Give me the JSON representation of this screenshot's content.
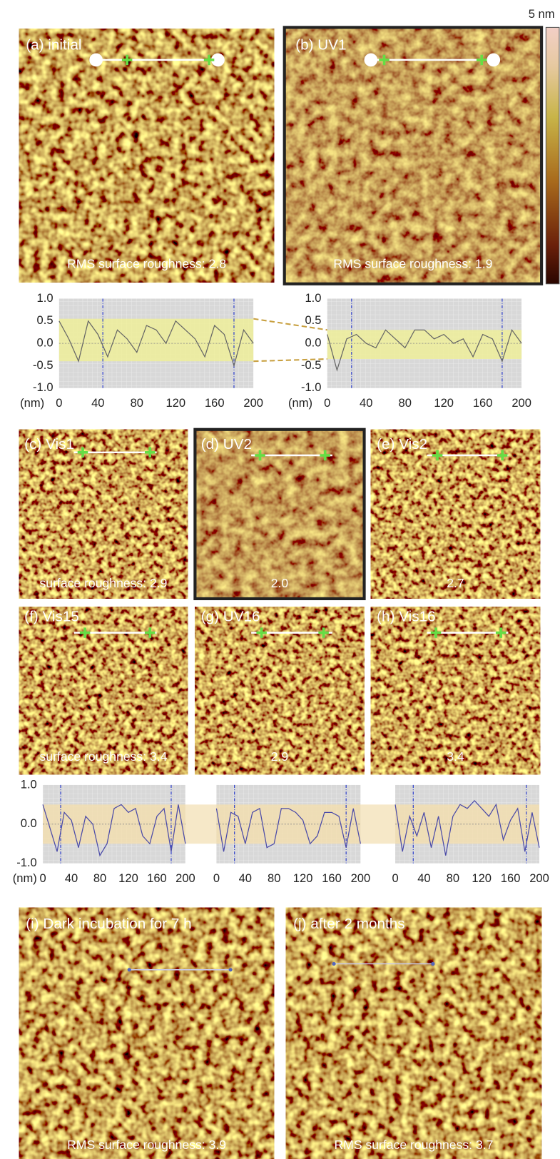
{
  "colorbar": {
    "label": "5 nm"
  },
  "panels": [
    {
      "label": "(a) initial",
      "roughness": "RMS surface roughness: 2.8"
    },
    {
      "label": "(b) UV1",
      "roughness": "RMS surface roughness: 1.9"
    },
    {
      "label": "(c) Vis1",
      "roughness": "surface roughness: 2.9"
    },
    {
      "label": "(d) UV2",
      "roughness": "2.0"
    },
    {
      "label": "(e) Vis2",
      "roughness": "2.7"
    },
    {
      "label": "(f) Vis15",
      "roughness": "surface roughness: 3.4"
    },
    {
      "label": "(g) UV16",
      "roughness": "2.9"
    },
    {
      "label": "(h) Vis16",
      "roughness": "3.4"
    },
    {
      "label": "(i) Dark incubation for 7 h",
      "roughness": "RMS surface roughness: 3.9"
    },
    {
      "label": "(j) after 2 months",
      "roughness": "RMS surface roughness: 3.7"
    }
  ],
  "chart_data": [
    {
      "type": "line",
      "x_label": "(nm)",
      "x": [
        0,
        10,
        20,
        30,
        40,
        50,
        60,
        70,
        80,
        90,
        100,
        110,
        120,
        130,
        140,
        150,
        160,
        170,
        180,
        190,
        200
      ],
      "series": [
        {
          "color": "#666666",
          "values": [
            0.5,
            0.1,
            -0.4,
            0.5,
            0.2,
            -0.3,
            0.3,
            0.1,
            -0.2,
            0.4,
            0.3,
            0.0,
            0.5,
            0.3,
            0.1,
            -0.3,
            0.4,
            0.2,
            -0.5,
            0.3,
            0.0
          ]
        }
      ],
      "xlim": [
        0,
        200
      ],
      "ylim": [
        -1,
        1
      ],
      "xticks": [
        0,
        40,
        80,
        120,
        160,
        200
      ],
      "yticks": [
        {
          "value": 1,
          "label": "1.0"
        },
        0.5,
        {
          "value": 0,
          "label": "0.0"
        },
        -0.5,
        {
          "value": -1,
          "label": "-1.0"
        }
      ],
      "band": [
        -0.4,
        0.55
      ],
      "band_color": "#eeee9a",
      "cursors": [
        45,
        180
      ],
      "cursor_color": "#3344cc",
      "grid": true
    },
    {
      "type": "line",
      "x_label": "(nm)",
      "x": [
        0,
        10,
        20,
        30,
        40,
        50,
        60,
        70,
        80,
        90,
        100,
        110,
        120,
        130,
        140,
        150,
        160,
        170,
        180,
        190,
        200
      ],
      "series": [
        {
          "color": "#666666",
          "values": [
            0.2,
            -0.6,
            0.1,
            0.2,
            0.0,
            -0.1,
            0.3,
            0.1,
            -0.1,
            0.3,
            0.3,
            0.1,
            0.2,
            0.0,
            0.1,
            -0.3,
            0.2,
            0.1,
            -0.4,
            0.3,
            0.0
          ]
        }
      ],
      "xlim": [
        0,
        200
      ],
      "ylim": [
        -1,
        1
      ],
      "xticks": [
        0,
        40,
        80,
        120,
        160,
        200
      ],
      "yticks": [
        {
          "value": 1,
          "label": "1.0"
        },
        0.5,
        {
          "value": 0,
          "label": "0.0"
        },
        -0.5,
        {
          "value": -1,
          "label": "-1.0"
        }
      ],
      "band": [
        -0.35,
        0.3
      ],
      "band_color": "#eeee9a",
      "cursors": [
        25,
        180
      ],
      "cursor_color": "#3344cc",
      "grid": true
    },
    {
      "type": "line",
      "x_label": "(nm)",
      "x": [
        0,
        10,
        20,
        30,
        40,
        50,
        60,
        70,
        80,
        90,
        100,
        110,
        120,
        130,
        140,
        150,
        160,
        170,
        180,
        190,
        200
      ],
      "series": [
        {
          "color": "#4a4aa8",
          "values": [
            0.5,
            -0.1,
            -0.7,
            0.3,
            0.1,
            -0.6,
            0.2,
            0.0,
            -0.8,
            -0.5,
            0.4,
            0.5,
            0.3,
            0.4,
            -0.3,
            -0.5,
            0.2,
            0.4,
            -0.7,
            0.5,
            -0.5
          ]
        }
      ],
      "xlim": [
        0,
        200
      ],
      "ylim": [
        -1,
        1
      ],
      "xticks": [
        0,
        40,
        80,
        120,
        160,
        200
      ],
      "yticks": [
        {
          "value": 1,
          "label": "1.0"
        },
        {
          "value": 0,
          "label": "0.0"
        },
        {
          "value": -1,
          "label": "-1.0"
        }
      ],
      "band": [
        -0.5,
        0.5
      ],
      "band_color": "#f2deb0",
      "cursors": [
        25,
        180
      ],
      "cursor_color": "#3344cc",
      "grid": true
    },
    {
      "type": "line",
      "x": [
        0,
        10,
        20,
        30,
        40,
        50,
        60,
        70,
        80,
        90,
        100,
        110,
        120,
        130,
        140,
        150,
        160,
        170,
        180,
        190,
        200
      ],
      "series": [
        {
          "color": "#4a4aa8",
          "values": [
            0.4,
            -0.7,
            0.3,
            0.2,
            -0.5,
            0.3,
            0.4,
            -0.6,
            -0.5,
            0.4,
            0.4,
            0.3,
            0.1,
            -0.5,
            -0.3,
            0.3,
            0.3,
            0.2,
            -0.6,
            0.4,
            -0.5
          ]
        }
      ],
      "xlim": [
        0,
        200
      ],
      "ylim": [
        -1,
        1
      ],
      "xticks": [
        0,
        40,
        80,
        120,
        160,
        200
      ],
      "band": [
        -0.5,
        0.5
      ],
      "band_color": "#f2deb0",
      "cursors": [
        25,
        180
      ],
      "cursor_color": "#3344cc",
      "grid": true
    },
    {
      "type": "line",
      "x": [
        0,
        10,
        20,
        30,
        40,
        50,
        60,
        70,
        80,
        90,
        100,
        110,
        120,
        130,
        140,
        150,
        160,
        170,
        180,
        190,
        200
      ],
      "series": [
        {
          "color": "#4a4aa8",
          "values": [
            0.5,
            -0.7,
            0.2,
            -0.3,
            0.3,
            -0.6,
            0.2,
            -0.8,
            0.2,
            0.5,
            0.4,
            0.6,
            0.4,
            0.2,
            0.5,
            -0.4,
            0.1,
            0.4,
            -0.7,
            0.3,
            -0.6
          ]
        }
      ],
      "xlim": [
        0,
        200
      ],
      "ylim": [
        -1,
        1
      ],
      "xticks": [
        0,
        40,
        80,
        120,
        160,
        200
      ],
      "band": [
        -0.5,
        0.5
      ],
      "band_color": "#f2deb0",
      "cursors": [
        25,
        182
      ],
      "cursor_color": "#3344cc",
      "grid": true
    }
  ]
}
